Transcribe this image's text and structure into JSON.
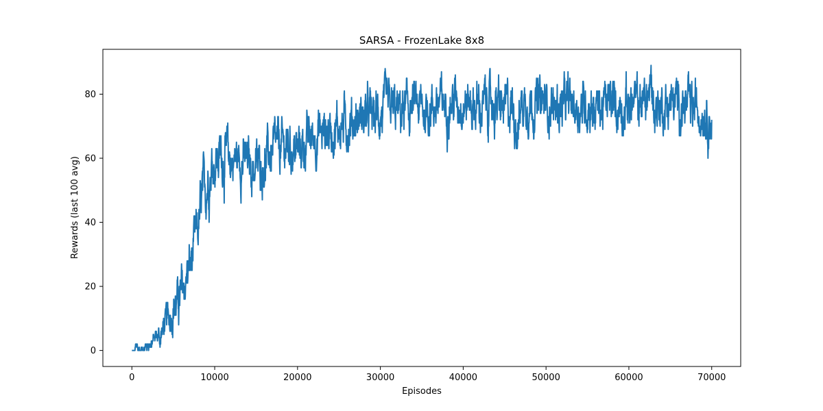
{
  "chart_data": {
    "type": "line",
    "title": "SARSA - FrozenLake 8x8",
    "xlabel": "Episodes",
    "ylabel": "Rewards (last 100 avg)",
    "xlim": [
      -3500,
      73500
    ],
    "ylim": [
      -5,
      94
    ],
    "xticks": [
      0,
      10000,
      20000,
      30000,
      40000,
      50000,
      60000,
      70000
    ],
    "xtick_labels": [
      "0",
      "10000",
      "20000",
      "30000",
      "40000",
      "50000",
      "60000",
      "70000"
    ],
    "yticks": [
      0,
      20,
      40,
      60,
      80
    ],
    "ytick_labels": [
      "0",
      "20",
      "40",
      "60",
      "80"
    ],
    "grid": false,
    "color": "#1f77b4",
    "series": [
      {
        "name": "",
        "x": [
          0,
          500,
          1000,
          1500,
          2000,
          2500,
          3000,
          3500,
          4000,
          4500,
          5000,
          5500,
          6000,
          6500,
          7000,
          7500,
          8000,
          8500,
          9000,
          9500,
          10000,
          11000,
          12000,
          13000,
          14000,
          15000,
          16000,
          17000,
          18000,
          19000,
          20000,
          21000,
          22000,
          23000,
          24000,
          25000,
          26000,
          27000,
          28000,
          29000,
          30000,
          31000,
          32000,
          33000,
          34000,
          35000,
          36000,
          37000,
          38000,
          39000,
          40000,
          41000,
          42000,
          43000,
          44000,
          45000,
          46000,
          46700,
          47000,
          48000,
          49000,
          50000,
          51000,
          52000,
          53000,
          54000,
          55000,
          56000,
          57000,
          58000,
          59000,
          60000,
          61000,
          62000,
          62700,
          63000,
          64000,
          65000,
          66000,
          67000,
          68000,
          69000,
          70000
        ],
        "values": [
          0,
          1,
          0,
          1,
          2,
          3,
          4,
          5,
          8,
          11,
          14,
          15,
          17,
          22,
          26,
          31,
          38,
          47,
          52,
          57,
          60,
          61,
          59,
          60,
          58,
          57,
          59,
          62,
          63,
          64,
          62,
          65,
          67,
          68,
          69,
          70,
          71,
          72,
          73,
          73,
          74,
          75,
          74,
          75,
          76,
          75,
          76,
          77,
          77,
          78,
          78,
          77,
          76,
          77,
          76,
          75,
          76,
          70,
          77,
          78,
          77,
          77,
          76,
          76,
          77,
          76,
          77,
          76,
          76,
          77,
          76,
          77,
          77,
          78,
          82,
          77,
          76,
          77,
          77,
          76,
          75,
          76,
          72
        ],
        "spread": [
          0,
          1.5,
          1,
          1.5,
          2,
          2.5,
          3,
          4,
          4,
          5,
          6,
          6,
          7,
          7,
          7,
          7,
          8,
          8,
          8,
          8,
          8,
          8,
          7,
          7,
          7,
          7,
          7,
          7,
          7,
          7,
          7,
          7,
          7,
          7,
          7,
          7,
          7,
          7,
          7,
          7,
          7,
          7,
          7,
          7,
          7,
          7,
          7,
          7,
          7,
          7,
          7,
          7,
          7,
          7,
          7,
          7,
          7,
          8,
          7,
          7,
          7,
          7,
          7,
          7,
          7,
          7,
          7,
          7,
          7,
          7,
          7,
          7,
          7,
          7,
          7,
          7,
          7,
          7,
          7,
          7,
          7,
          7,
          7
        ]
      }
    ]
  }
}
